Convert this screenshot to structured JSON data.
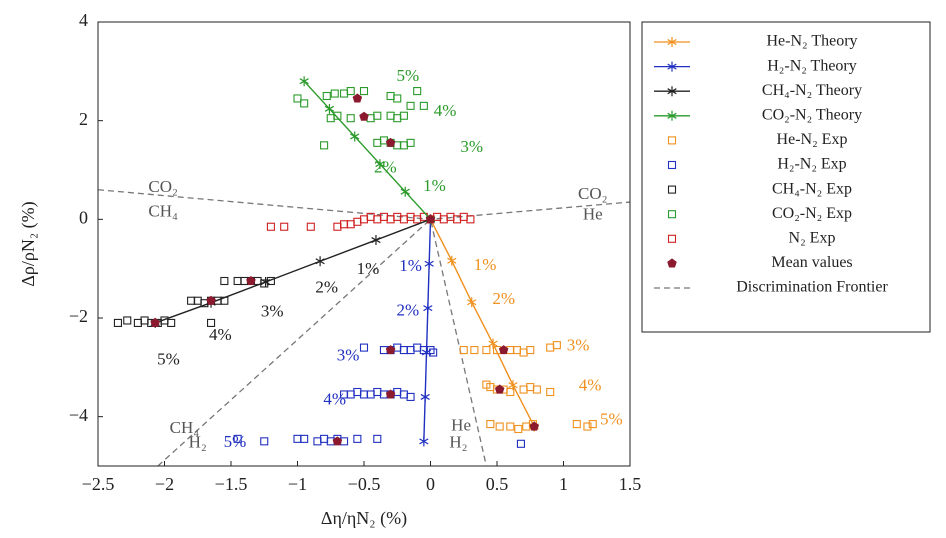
{
  "chart_data": {
    "type": "scatter",
    "x_label": "Δη/ηN₂ (%)",
    "y_label": "Δρ/ρN₂ (%)",
    "xlim": [
      -2.5,
      1.5
    ],
    "ylim": [
      -5,
      4
    ],
    "xticks": [
      {
        "value": -2.5,
        "label": "−2.5"
      },
      {
        "value": -2,
        "label": "−2"
      },
      {
        "value": -1.5,
        "label": "−1.5"
      },
      {
        "value": -1,
        "label": "−1"
      },
      {
        "value": -0.5,
        "label": "−0.5"
      },
      0,
      0.5,
      1,
      1.5
    ],
    "yticks": [
      {
        "value": -4,
        "label": "−4"
      },
      {
        "value": -2,
        "label": "−2"
      },
      0,
      2,
      4
    ],
    "grid": false,
    "legend": "right",
    "series": [
      {
        "name": "He-N₂ Theory",
        "color": "#f0901e",
        "mode": "line-star",
        "x": [
          0,
          0.16,
          0.31,
          0.47,
          0.62,
          0.78
        ],
        "y": [
          0,
          -0.84,
          -1.68,
          -2.52,
          -3.36,
          -4.2
        ]
      },
      {
        "name": "H₂-N₂ Theory",
        "color": "#2030c0",
        "mode": "line-star",
        "x": [
          0,
          -0.01,
          -0.02,
          -0.03,
          -0.04,
          -0.05
        ],
        "y": [
          0,
          -0.9,
          -1.8,
          -2.7,
          -3.6,
          -4.5
        ]
      },
      {
        "name": "CH₄-N₂ Theory",
        "color": "#222222",
        "mode": "line-star",
        "x": [
          0,
          -0.41,
          -0.83,
          -1.24,
          -1.65,
          -2.07
        ],
        "y": [
          0,
          -0.42,
          -0.85,
          -1.27,
          -1.69,
          -2.1
        ]
      },
      {
        "name": "CO₂-N₂ Theory",
        "color": "#2a9a2a",
        "mode": "line-star",
        "x": [
          0,
          -0.19,
          -0.38,
          -0.57,
          -0.76,
          -0.95
        ],
        "y": [
          0,
          0.56,
          1.12,
          1.68,
          2.24,
          2.8
        ]
      },
      {
        "name": "He-N₂ Exp",
        "color": "#f0901e",
        "mode": "square",
        "x": [
          0.25,
          0.33,
          0.42,
          0.5,
          0.6,
          0.65,
          0.7,
          0.75,
          0.9,
          0.95,
          0.42,
          0.45,
          0.5,
          0.55,
          0.6,
          0.7,
          0.75,
          0.8,
          0.9,
          0.45,
          0.52,
          0.6,
          0.66,
          0.72,
          0.77,
          1.1,
          1.18,
          1.22
        ],
        "y": [
          -2.65,
          -2.65,
          -2.65,
          -2.65,
          -2.65,
          -2.65,
          -2.7,
          -2.65,
          -2.6,
          -2.55,
          -3.35,
          -3.4,
          -3.45,
          -3.45,
          -3.5,
          -3.45,
          -3.4,
          -3.45,
          -3.5,
          -4.15,
          -4.2,
          -4.2,
          -4.25,
          -4.2,
          -4.15,
          -4.15,
          -4.2,
          -4.15
        ]
      },
      {
        "name": "H₂-N₂ Exp",
        "color": "#2030c0",
        "mode": "square",
        "x": [
          -0.5,
          -0.35,
          -0.3,
          -0.25,
          -0.2,
          -0.15,
          -0.1,
          -0.05,
          0,
          0.02,
          -0.65,
          -0.6,
          -0.55,
          -0.5,
          -0.45,
          -0.4,
          -0.35,
          -0.3,
          -0.25,
          -0.2,
          -0.15,
          -1.45,
          -1.25,
          -1.0,
          -0.95,
          -0.85,
          -0.8,
          -0.75,
          -0.7,
          -0.65,
          -0.55,
          -0.4,
          0.68
        ],
        "y": [
          -2.6,
          -2.65,
          -2.65,
          -2.6,
          -2.65,
          -2.65,
          -2.6,
          -2.65,
          -2.65,
          -2.7,
          -3.55,
          -3.55,
          -3.5,
          -3.55,
          -3.55,
          -3.5,
          -3.55,
          -3.55,
          -3.5,
          -3.55,
          -3.6,
          -4.45,
          -4.5,
          -4.45,
          -4.45,
          -4.5,
          -4.45,
          -4.5,
          -4.45,
          -4.5,
          -4.45,
          -4.45,
          -4.55
        ]
      },
      {
        "name": "CH₄-N₂ Exp",
        "color": "#222222",
        "mode": "square",
        "x": [
          -1.55,
          -1.45,
          -1.4,
          -1.35,
          -1.3,
          -1.25,
          -1.2,
          -1.8,
          -1.75,
          -1.7,
          -1.65,
          -1.6,
          -1.55,
          -1.65,
          -2.35,
          -2.28,
          -2.2,
          -2.15,
          -2.1,
          -2.05,
          -2.0,
          -1.95
        ],
        "y": [
          -1.25,
          -1.25,
          -1.25,
          -1.25,
          -1.25,
          -1.3,
          -1.25,
          -1.65,
          -1.65,
          -1.7,
          -1.65,
          -1.65,
          -1.65,
          -2.1,
          -2.1,
          -2.05,
          -2.1,
          -2.05,
          -2.1,
          -2.1,
          -2.05,
          -2.1
        ]
      },
      {
        "name": "CO₂-N₂ Exp",
        "color": "#2a9a2a",
        "mode": "square",
        "x": [
          -1.0,
          -0.95,
          -0.78,
          -0.72,
          -0.65,
          -0.6,
          -0.5,
          -0.75,
          -0.7,
          -0.6,
          -0.45,
          -0.4,
          -0.3,
          -0.25,
          -0.2,
          -0.15,
          -0.1,
          -0.05,
          -0.8,
          -0.4,
          -0.35,
          -0.3,
          -0.25,
          -0.2,
          -0.15,
          -0.3,
          -0.25
        ],
        "y": [
          2.45,
          2.35,
          2.5,
          2.55,
          2.55,
          2.6,
          2.6,
          2.05,
          2.1,
          2.05,
          2.05,
          2.1,
          2.1,
          2.05,
          2.1,
          2.3,
          2.6,
          2.3,
          1.5,
          1.55,
          1.6,
          1.55,
          1.5,
          1.5,
          1.55,
          2.5,
          2.45
        ]
      },
      {
        "name": "N₂ Exp",
        "color": "#d02020",
        "mode": "square",
        "x": [
          -1.2,
          -1.1,
          -0.9,
          -0.7,
          -0.65,
          -0.6,
          -0.55,
          -0.5,
          -0.45,
          -0.4,
          -0.35,
          -0.3,
          -0.25,
          -0.2,
          -0.15,
          -0.1,
          -0.05,
          0,
          0.05,
          0.1,
          0.15,
          0.2,
          0.25,
          0.3
        ],
        "y": [
          -0.15,
          -0.15,
          -0.15,
          -0.15,
          -0.1,
          -0.1,
          -0.05,
          0,
          0.05,
          0,
          0.05,
          0,
          0.05,
          0,
          0.05,
          0,
          0.05,
          0,
          0.05,
          0,
          0.05,
          0,
          0.05,
          0
        ]
      },
      {
        "name": "Mean values",
        "color": "#8b1a2e",
        "mode": "pentagon",
        "x": [
          0.55,
          0.52,
          0.78,
          -0.3,
          -0.3,
          -0.7,
          -1.35,
          -1.65,
          -2.07,
          -0.55,
          -0.5,
          -0.3,
          0
        ],
        "y": [
          -2.65,
          -3.45,
          -4.2,
          -2.65,
          -3.55,
          -4.5,
          -1.25,
          -1.65,
          -2.1,
          2.45,
          2.08,
          1.55,
          0
        ]
      },
      {
        "name": "Discrimination Frontier",
        "color": "#777777",
        "mode": "dashed",
        "x": [
          -2.5,
          0,
          1.5,
          null,
          -2.05,
          0,
          0.42
        ],
        "y": [
          0.6,
          0,
          0.35,
          null,
          -5,
          0,
          -5
        ]
      }
    ],
    "annotations": [
      {
        "text": "5%",
        "x": -0.17,
        "y": 2.88,
        "color": "#2a9a2a"
      },
      {
        "text": "4%",
        "x": 0.11,
        "y": 2.17,
        "color": "#2a9a2a"
      },
      {
        "text": "3%",
        "x": 0.31,
        "y": 1.44,
        "color": "#2a9a2a"
      },
      {
        "text": "2%",
        "x": -0.34,
        "y": 1.03,
        "color": "#2a9a2a"
      },
      {
        "text": "1%",
        "x": 0.03,
        "y": 0.65,
        "color": "#2a9a2a"
      },
      {
        "text": "1%",
        "x": -0.47,
        "y": -1.03,
        "color": "#222222"
      },
      {
        "text": "2%",
        "x": -0.78,
        "y": -1.4,
        "color": "#222222"
      },
      {
        "text": "3%",
        "x": -1.19,
        "y": -1.89,
        "color": "#222222"
      },
      {
        "text": "4%",
        "x": -1.58,
        "y": -2.37,
        "color": "#222222"
      },
      {
        "text": "5%",
        "x": -1.97,
        "y": -2.86,
        "color": "#222222"
      },
      {
        "text": "1%",
        "x": -0.15,
        "y": -0.97,
        "color": "#2030c0"
      },
      {
        "text": "2%",
        "x": -0.17,
        "y": -1.87,
        "color": "#2030c0"
      },
      {
        "text": "3%",
        "x": -0.62,
        "y": -2.78,
        "color": "#2030c0"
      },
      {
        "text": "4%",
        "x": -0.72,
        "y": -3.67,
        "color": "#2030c0"
      },
      {
        "text": "5%",
        "x": -1.47,
        "y": -4.54,
        "color": "#2030c0"
      },
      {
        "text": "1%",
        "x": 0.41,
        "y": -0.95,
        "color": "#f0901e"
      },
      {
        "text": "2%",
        "x": 0.55,
        "y": -1.64,
        "color": "#f0901e"
      },
      {
        "text": "3%",
        "x": 1.11,
        "y": -2.58,
        "color": "#f0901e"
      },
      {
        "text": "4%",
        "x": 1.2,
        "y": -3.39,
        "color": "#f0901e"
      },
      {
        "text": "5%",
        "x": 1.36,
        "y": -4.08,
        "color": "#f0901e"
      },
      {
        "text": "CO₂",
        "x": -2.01,
        "y": 0.63,
        "color": "#555555"
      },
      {
        "text": "CH₄",
        "x": -2.01,
        "y": 0.14,
        "color": "#555555"
      },
      {
        "text": "CO₂",
        "x": 1.22,
        "y": 0.49,
        "color": "#555555"
      },
      {
        "text": "He",
        "x": 1.22,
        "y": 0.08,
        "color": "#555555"
      },
      {
        "text": "CH₄",
        "x": -1.85,
        "y": -4.25,
        "color": "#555555"
      },
      {
        "text": "H₂",
        "x": -1.75,
        "y": -4.55,
        "color": "#555555"
      },
      {
        "text": "He",
        "x": 0.23,
        "y": -4.2,
        "color": "#555555"
      },
      {
        "text": "H₂",
        "x": 0.21,
        "y": -4.55,
        "color": "#555555"
      }
    ]
  }
}
